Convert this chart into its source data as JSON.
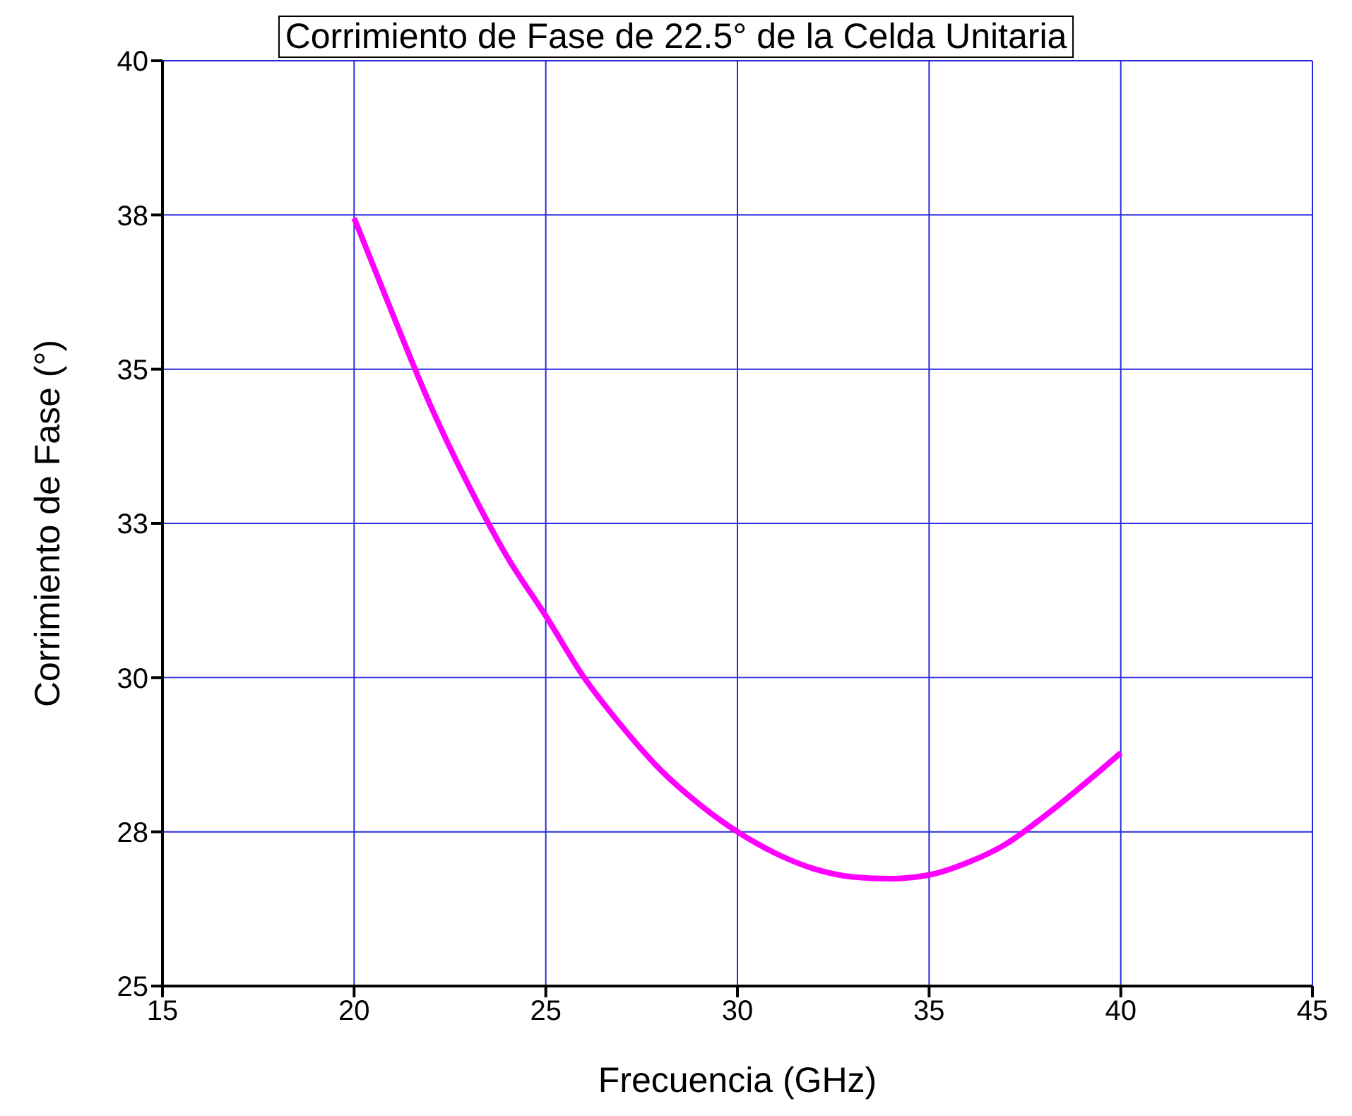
{
  "chart_data": {
    "type": "line",
    "title": "Corrimiento de Fase de 22.5°  de la Celda Unitaria",
    "xlabel": "Frecuencia (GHz)",
    "ylabel": "Corrimiento de Fase (°)",
    "x": [
      20,
      21,
      22,
      23,
      24,
      25,
      26,
      27,
      28,
      29,
      30,
      31,
      32,
      33,
      34,
      35,
      36,
      37,
      38,
      39,
      40
    ],
    "series": [
      {
        "color": "#ff00ff",
        "values": [
          37.45,
          35.9,
          34.4,
          33.1,
          31.95,
          31.0,
          30.0,
          29.2,
          28.5,
          27.95,
          27.5,
          27.15,
          26.9,
          26.77,
          26.74,
          26.8,
          27.0,
          27.3,
          27.75,
          28.25,
          28.78
        ]
      }
    ],
    "xlim": [
      15,
      45
    ],
    "xticks": [
      15,
      20,
      25,
      30,
      35,
      40,
      45
    ],
    "ylim": [
      25,
      40
    ],
    "yticks": [
      25,
      {
        "value": 27.5,
        "label": "28"
      },
      30,
      {
        "value": 32.5,
        "label": "33"
      },
      35,
      {
        "value": 37.5,
        "label": "38"
      },
      40
    ],
    "grid": true,
    "marker": "none",
    "line_style": "solid"
  }
}
